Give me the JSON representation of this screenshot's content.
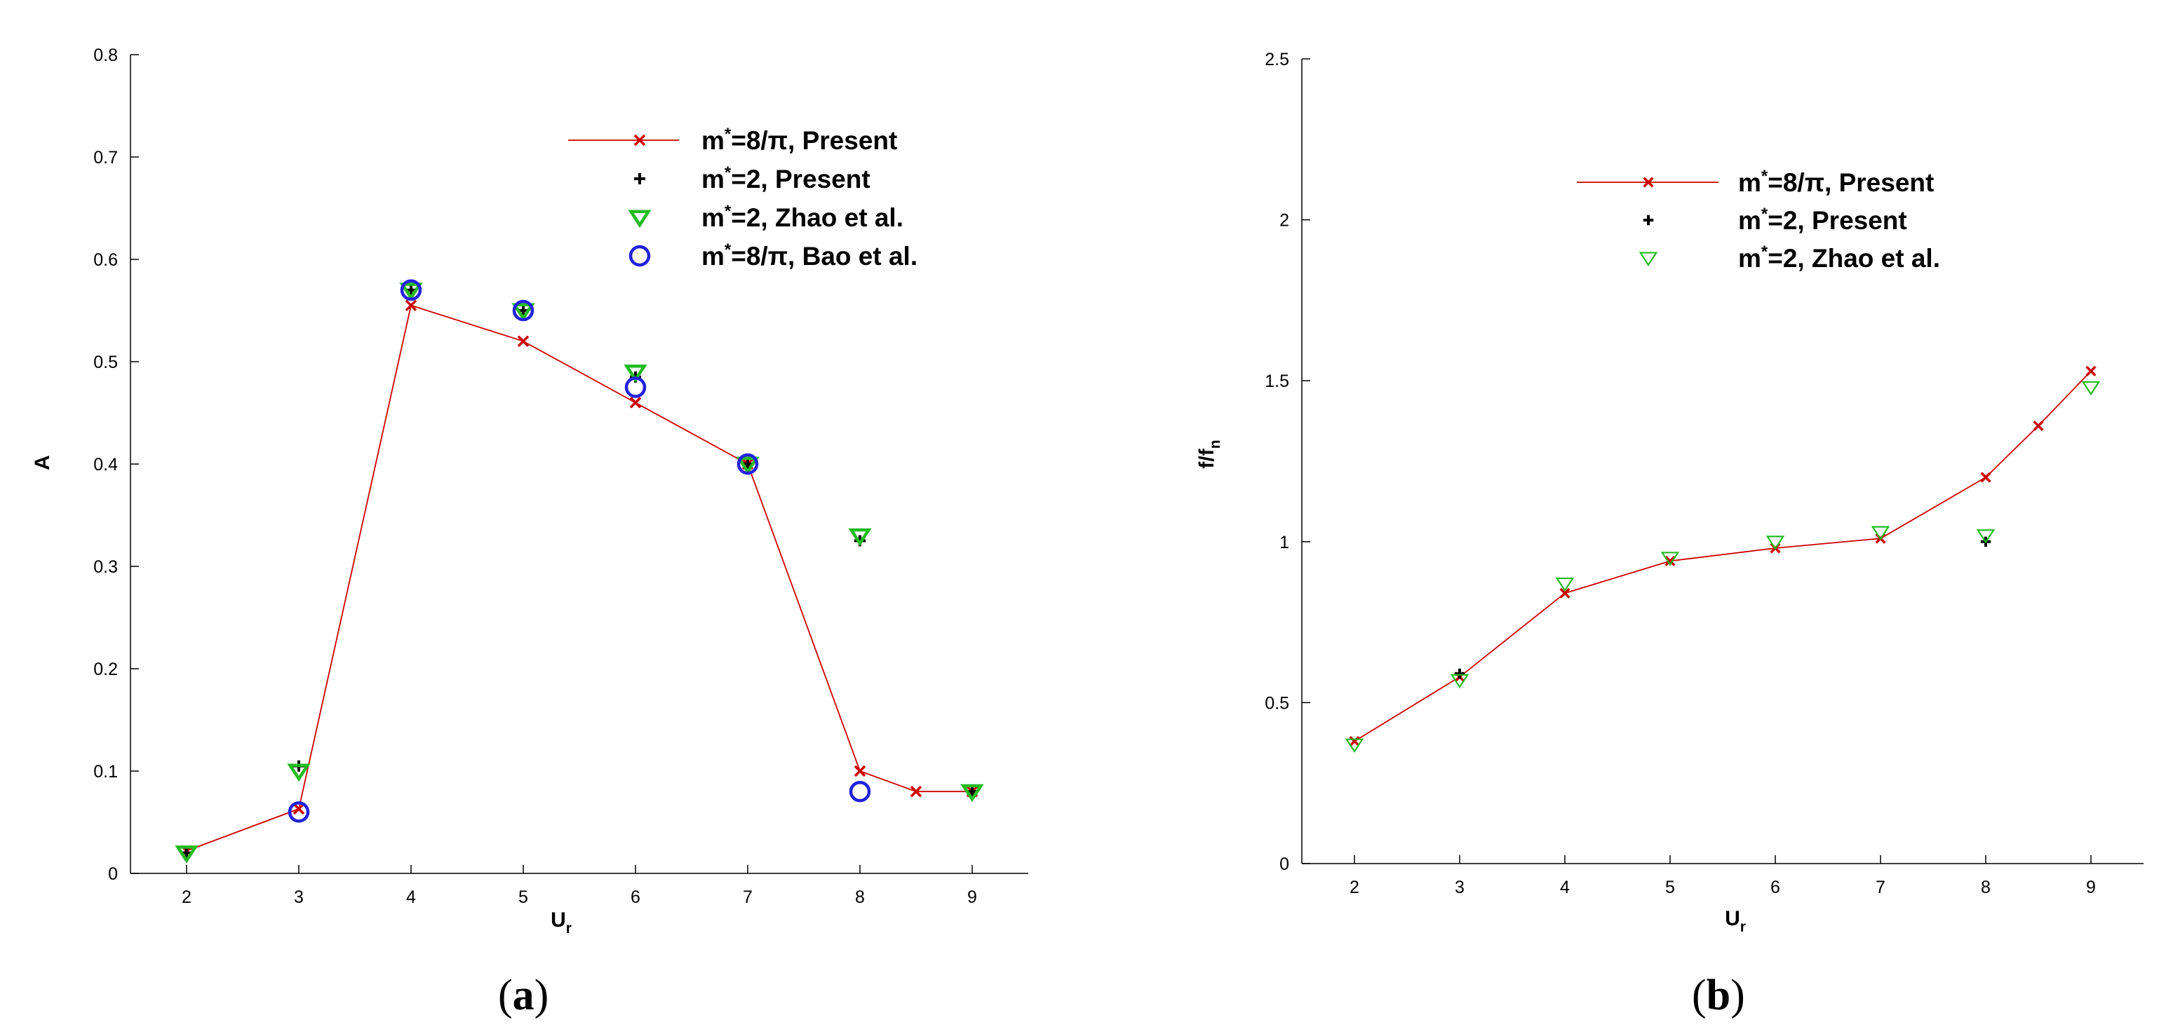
{
  "chart_data": [
    {
      "type": "line",
      "panel": "(a)",
      "xlabel": "Ur",
      "ylabel": "A",
      "xlim": [
        1.5,
        9.5
      ],
      "ylim": [
        0,
        0.8
      ],
      "xticks": [
        2,
        3,
        4,
        5,
        6,
        7,
        8,
        9
      ],
      "yticks": [
        0,
        0.1,
        0.2,
        0.3,
        0.4,
        0.5,
        0.6,
        0.7,
        0.8
      ],
      "grid": false,
      "legend_placement": "top-right",
      "series": [
        {
          "name": "m*=8/π, Present",
          "marker": "x",
          "color": "#cc0000",
          "line": true,
          "x": [
            2,
            3,
            4,
            5,
            6,
            7,
            8,
            8.5,
            9
          ],
          "y": [
            0.022,
            0.063,
            0.555,
            0.52,
            0.46,
            0.4,
            0.1,
            0.08,
            0.08
          ]
        },
        {
          "name": "m*=2, Present",
          "marker": "+",
          "color": "#000000",
          "line": false,
          "x": [
            2,
            3,
            4,
            5,
            6,
            7,
            8,
            9
          ],
          "y": [
            0.02,
            0.105,
            0.57,
            0.55,
            0.485,
            0.4,
            0.325,
            0.08
          ]
        },
        {
          "name": "m*=2, Zhao et al.",
          "marker": "triangle-down",
          "color": "#22bb22",
          "line": false,
          "x": [
            2,
            3,
            4,
            5,
            6,
            7,
            8,
            9
          ],
          "y": [
            0.02,
            0.1,
            0.57,
            0.55,
            0.49,
            0.4,
            0.33,
            0.08
          ]
        },
        {
          "name": "m*=8/π, Bao et al.",
          "marker": "circle",
          "color": "#2222dd",
          "line": false,
          "x": [
            3,
            4,
            5,
            6,
            7,
            8
          ],
          "y": [
            0.06,
            0.57,
            0.55,
            0.475,
            0.4,
            0.08
          ]
        }
      ]
    },
    {
      "type": "line",
      "panel": "(b)",
      "xlabel": "Ur",
      "ylabel": "f/fn",
      "xlim": [
        1.5,
        9.5
      ],
      "ylim": [
        0,
        2.5
      ],
      "xticks": [
        2,
        3,
        4,
        5,
        6,
        7,
        8,
        9
      ],
      "yticks": [
        0,
        0.5,
        1,
        1.5,
        2,
        2.5
      ],
      "grid": false,
      "legend_placement": "top-right",
      "series": [
        {
          "name": "m*=8/π, Present",
          "marker": "x",
          "color": "#cc0000",
          "line": true,
          "x": [
            2,
            3,
            4,
            5,
            6,
            7,
            8,
            8.5,
            9
          ],
          "y": [
            0.38,
            0.58,
            0.84,
            0.94,
            0.98,
            1.01,
            1.2,
            1.36,
            1.53
          ]
        },
        {
          "name": "m*=2, Present",
          "marker": "+",
          "color": "#000000",
          "line": false,
          "x": [
            3,
            8
          ],
          "y": [
            0.59,
            1.0
          ]
        },
        {
          "name": "m*=2, Zhao et al.",
          "marker": "triangle-down-open",
          "color": "#22bb22",
          "line": false,
          "x": [
            2,
            3,
            4,
            5,
            6,
            7,
            8,
            9
          ],
          "y": [
            0.37,
            0.57,
            0.87,
            0.95,
            1.0,
            1.03,
            1.02,
            1.48
          ]
        }
      ]
    }
  ]
}
